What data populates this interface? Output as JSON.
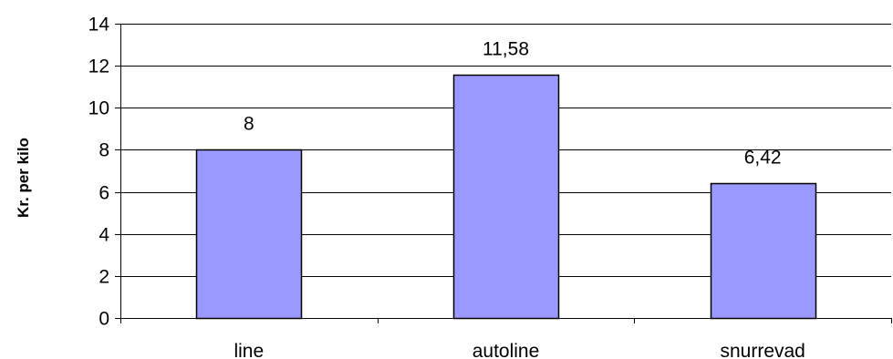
{
  "chart_data": {
    "type": "bar",
    "categories": [
      "line",
      "autoline",
      "snurrevad"
    ],
    "values": [
      8,
      11.58,
      6.42
    ],
    "data_labels": [
      "8",
      "11,58",
      "6,42"
    ],
    "ylabel": "Kr. per kilo",
    "xlabel": "",
    "title": "",
    "ylim": [
      0,
      14
    ],
    "yticks": [
      0,
      2,
      4,
      6,
      8,
      10,
      12,
      14
    ],
    "ytick_labels": [
      "0",
      "2",
      "4",
      "6",
      "8",
      "10",
      "12",
      "14"
    ],
    "grid": true,
    "legend": "none",
    "colors": {
      "bar_fill": "#9999ff",
      "bar_stroke": "#000000",
      "grid": "#000000",
      "axis": "#000000",
      "background": "#ffffff"
    }
  }
}
